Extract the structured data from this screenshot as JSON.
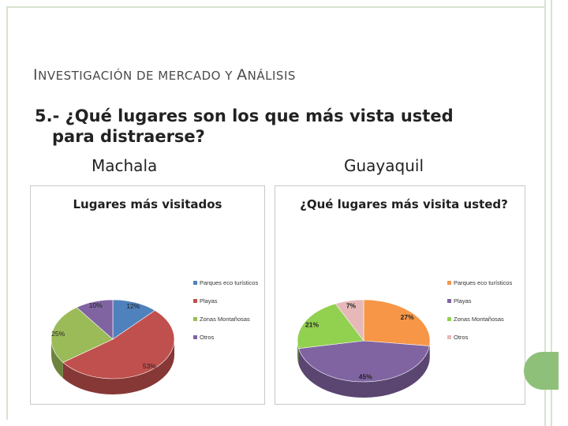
{
  "slide": {
    "title_parts": [
      {
        "text": "I",
        "small": false
      },
      {
        "text": "NVESTIGACIÓN  DE MERCADO Y ",
        "small": true
      },
      {
        "text": "A",
        "small": false
      },
      {
        "text": "NÁLISIS",
        "small": true
      }
    ],
    "question_line1": "5.- ¿Qué lugares son  los que más vista usted",
    "question_line2": "para distraerse?",
    "city_left": "Machala",
    "city_right": "Guayaquil",
    "colors": {
      "frame": "#d6e3cf",
      "tab": "#8fc07a"
    }
  },
  "chart_data": [
    {
      "type": "pie",
      "title": "Lugares más visitados",
      "categories": [
        "Parques eco turísticos",
        "Playas",
        "Zonas Montañosas",
        "Otros"
      ],
      "values": [
        12,
        53,
        25,
        10
      ],
      "labels": [
        "12%",
        "53%",
        "25%",
        "10%"
      ],
      "colors": [
        "#4f81bd",
        "#c0504d",
        "#9bbb59",
        "#8064a2"
      ],
      "legend": "right",
      "style": "3d"
    },
    {
      "type": "pie",
      "title": "¿Qué lugares más visita usted?",
      "categories": [
        "Parques eco turísticos",
        "Playas",
        "Zonas Montañosas",
        "Otros"
      ],
      "values": [
        27,
        45,
        21,
        7
      ],
      "labels": [
        "27%",
        "45%",
        "21%",
        "7%"
      ],
      "colors": [
        "#f79646",
        "#8064a2",
        "#92d050",
        "#e6b9b8"
      ],
      "legend": "right",
      "style": "3d"
    }
  ]
}
